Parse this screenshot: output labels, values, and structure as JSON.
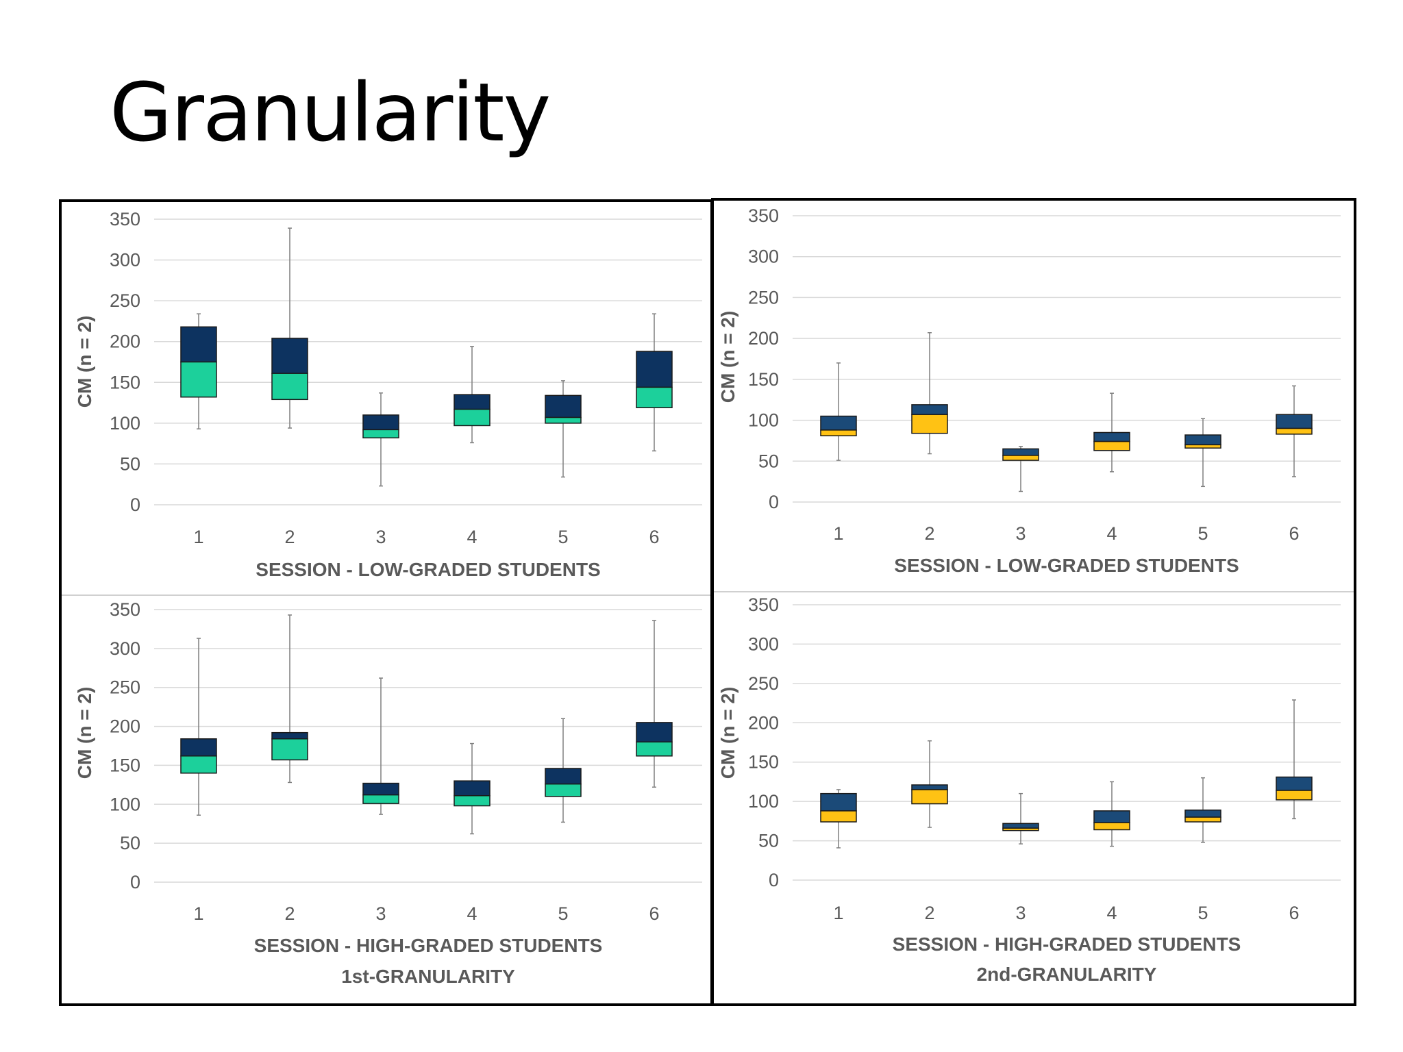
{
  "title": "Granularity",
  "chart_data": [
    {
      "type": "box",
      "panel": "top-left",
      "ylabel": "CM (n = 2)",
      "xlabel": [
        "SESSION - LOW-GRADED STUDENTS"
      ],
      "ylim": [
        0,
        350
      ],
      "yticks": [
        0,
        50,
        100,
        150,
        200,
        250,
        300,
        350
      ],
      "categories": [
        "1",
        "2",
        "3",
        "4",
        "5",
        "6"
      ],
      "colors": {
        "upper": "#0d3360",
        "lower": "#1cd09b"
      },
      "boxes": [
        {
          "min": 93,
          "q1": 132,
          "median": 175,
          "q3": 218,
          "max": 234
        },
        {
          "min": 94,
          "q1": 129,
          "median": 161,
          "q3": 204,
          "max": 339
        },
        {
          "min": 23,
          "q1": 82,
          "median": 92,
          "q3": 110,
          "max": 137
        },
        {
          "min": 76,
          "q1": 97,
          "median": 117,
          "q3": 135,
          "max": 194
        },
        {
          "min": 34,
          "q1": 100,
          "median": 107,
          "q3": 134,
          "max": 152
        },
        {
          "min": 66,
          "q1": 119,
          "median": 144,
          "q3": 188,
          "max": 234
        }
      ]
    },
    {
      "type": "box",
      "panel": "top-right",
      "ylabel": "CM (n = 2)",
      "xlabel": [
        "SESSION - LOW-GRADED STUDENTS"
      ],
      "ylim": [
        0,
        350
      ],
      "yticks": [
        0,
        50,
        100,
        150,
        200,
        250,
        300,
        350
      ],
      "categories": [
        "1",
        "2",
        "3",
        "4",
        "5",
        "6"
      ],
      "colors": {
        "upper": "#1b4a78",
        "lower": "#ffc214"
      },
      "boxes": [
        {
          "min": 51,
          "q1": 81,
          "median": 88,
          "q3": 105,
          "max": 170
        },
        {
          "min": 59,
          "q1": 84,
          "median": 107,
          "q3": 119,
          "max": 207
        },
        {
          "min": 13,
          "q1": 51,
          "median": 57,
          "q3": 65,
          "max": 68
        },
        {
          "min": 37,
          "q1": 63,
          "median": 74,
          "q3": 85,
          "max": 133
        },
        {
          "min": 19,
          "q1": 66,
          "median": 70,
          "q3": 82,
          "max": 102
        },
        {
          "min": 31,
          "q1": 83,
          "median": 90,
          "q3": 107,
          "max": 142
        }
      ]
    },
    {
      "type": "box",
      "panel": "bottom-left",
      "ylabel": "CM (n = 2)",
      "xlabel": [
        "SESSION - HIGH-GRADED STUDENTS",
        "1st-GRANULARITY"
      ],
      "ylim": [
        0,
        350
      ],
      "yticks": [
        0,
        50,
        100,
        150,
        200,
        250,
        300,
        350
      ],
      "categories": [
        "1",
        "2",
        "3",
        "4",
        "5",
        "6"
      ],
      "colors": {
        "upper": "#0d3360",
        "lower": "#1cd09b"
      },
      "boxes": [
        {
          "min": 86,
          "q1": 140,
          "median": 162,
          "q3": 184,
          "max": 313
        },
        {
          "min": 128,
          "q1": 157,
          "median": 184,
          "q3": 192,
          "max": 343
        },
        {
          "min": 87,
          "q1": 101,
          "median": 112,
          "q3": 127,
          "max": 262
        },
        {
          "min": 62,
          "q1": 98,
          "median": 111,
          "q3": 130,
          "max": 178
        },
        {
          "min": 77,
          "q1": 110,
          "median": 126,
          "q3": 146,
          "max": 210
        },
        {
          "min": 122,
          "q1": 162,
          "median": 180,
          "q3": 205,
          "max": 336
        }
      ]
    },
    {
      "type": "box",
      "panel": "bottom-right",
      "ylabel": "CM (n = 2)",
      "xlabel": [
        "SESSION - HIGH-GRADED STUDENTS",
        "2nd-GRANULARITY"
      ],
      "ylim": [
        0,
        350
      ],
      "yticks": [
        0,
        50,
        100,
        150,
        200,
        250,
        300,
        350
      ],
      "categories": [
        "1",
        "2",
        "3",
        "4",
        "5",
        "6"
      ],
      "colors": {
        "upper": "#1b4a78",
        "lower": "#ffc214"
      },
      "boxes": [
        {
          "min": 41,
          "q1": 74,
          "median": 88,
          "q3": 110,
          "max": 115
        },
        {
          "min": 67,
          "q1": 97,
          "median": 115,
          "q3": 121,
          "max": 177
        },
        {
          "min": 46,
          "q1": 63,
          "median": 66,
          "q3": 72,
          "max": 110
        },
        {
          "min": 43,
          "q1": 64,
          "median": 73,
          "q3": 88,
          "max": 125
        },
        {
          "min": 48,
          "q1": 74,
          "median": 80,
          "q3": 89,
          "max": 130
        },
        {
          "min": 78,
          "q1": 102,
          "median": 114,
          "q3": 131,
          "max": 229
        }
      ]
    }
  ]
}
